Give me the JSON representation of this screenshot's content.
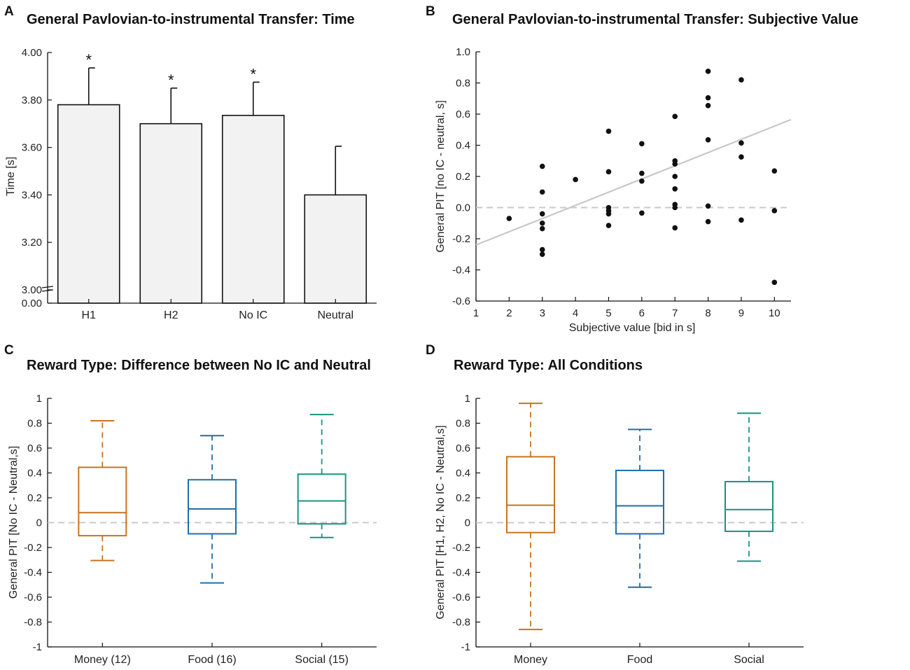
{
  "chart_data": [
    {
      "panel": "A",
      "type": "bar",
      "title": "General Pavlovian-to-instrumental Transfer: Time",
      "ylabel": "Time [s]",
      "xlabel": "",
      "ylim": [
        3.0,
        4.0
      ],
      "axis_break_label": "0.00",
      "yticks": [
        "3.00",
        "3.20",
        "3.40",
        "3.60",
        "3.80",
        "4.00"
      ],
      "categories": [
        "H1",
        "H2",
        "No IC",
        "Neutral"
      ],
      "values": [
        3.78,
        3.7,
        3.735,
        3.4
      ],
      "errors": [
        0.155,
        0.15,
        0.14,
        0.205
      ],
      "significance": [
        "*",
        "*",
        "*",
        ""
      ],
      "bar_color": "#f2f2f2"
    },
    {
      "panel": "B",
      "type": "scatter",
      "title": "General Pavlovian-to-instrumental Transfer:  Subjective Value",
      "xlabel": "Subjective value [bid in s]",
      "ylabel": "General PIT [no IC - neutral, s]",
      "xlim": [
        1,
        10.5
      ],
      "ylim": [
        -0.6,
        1.0
      ],
      "xticks": [
        "1",
        "2",
        "3",
        "4",
        "5",
        "6",
        "7",
        "8",
        "9",
        "10"
      ],
      "yticks": [
        "-0.6",
        "-0.4",
        "-0.2",
        "0.0",
        "0.2",
        "0.4",
        "0.6",
        "0.8",
        "1.0"
      ],
      "points": [
        [
          2,
          -0.07
        ],
        [
          3,
          0.265
        ],
        [
          3,
          0.1
        ],
        [
          3,
          -0.04
        ],
        [
          3,
          -0.1
        ],
        [
          3,
          -0.135
        ],
        [
          3,
          -0.27
        ],
        [
          3,
          -0.3
        ],
        [
          4,
          0.18
        ],
        [
          5,
          0.49
        ],
        [
          5,
          0.23
        ],
        [
          5,
          0.0
        ],
        [
          5,
          -0.02
        ],
        [
          5,
          -0.04
        ],
        [
          5,
          -0.115
        ],
        [
          6,
          0.41
        ],
        [
          6,
          0.22
        ],
        [
          6,
          0.17
        ],
        [
          6,
          -0.035
        ],
        [
          7,
          0.585
        ],
        [
          7,
          0.3
        ],
        [
          7,
          0.28
        ],
        [
          7,
          0.2
        ],
        [
          7,
          0.12
        ],
        [
          7,
          0.02
        ],
        [
          7,
          0.0
        ],
        [
          7,
          -0.13
        ],
        [
          8,
          0.875
        ],
        [
          8,
          0.705
        ],
        [
          8,
          0.655
        ],
        [
          8,
          0.435
        ],
        [
          8,
          0.01
        ],
        [
          8,
          -0.09
        ],
        [
          9,
          0.82
        ],
        [
          9,
          0.415
        ],
        [
          9,
          0.325
        ],
        [
          9,
          -0.08
        ],
        [
          10,
          0.235
        ],
        [
          10,
          -0.02
        ],
        [
          10,
          -0.48
        ]
      ],
      "fit_line": {
        "x": [
          1,
          10.5
        ],
        "y": [
          -0.24,
          0.565
        ],
        "color": "#c8c8c8"
      },
      "reference_line": {
        "y": 0.0,
        "style": "dashed",
        "color": "#c8c8c8"
      }
    },
    {
      "panel": "C",
      "type": "box",
      "title": "Reward Type: Difference between No IC and Neutral",
      "ylabel": "General PIT [No IC - Neutral,s]",
      "ylim": [
        -1,
        1
      ],
      "yticks": [
        "-1",
        "-0.8",
        "-0.6",
        "-0.4",
        "-0.2",
        "0",
        "0.2",
        "0.4",
        "0.6",
        "0.8",
        "1"
      ],
      "categories": [
        "Money (12)",
        "Food (16)",
        "Social (15)"
      ],
      "boxes": [
        {
          "whisker_low": -0.305,
          "q1": -0.105,
          "median": 0.08,
          "q3": 0.445,
          "whisker_high": 0.82,
          "color": "#c8731f"
        },
        {
          "whisker_low": -0.485,
          "q1": -0.09,
          "median": 0.11,
          "q3": 0.345,
          "whisker_high": 0.7,
          "color": "#1f6fa8"
        },
        {
          "whisker_low": -0.12,
          "q1": -0.01,
          "median": 0.175,
          "q3": 0.39,
          "whisker_high": 0.87,
          "color": "#17957f"
        }
      ],
      "reference_line": {
        "y": 0,
        "style": "dashed",
        "color": "#c8c8c8"
      }
    },
    {
      "panel": "D",
      "type": "box",
      "title": "Reward Type: All Conditions",
      "ylabel": "General PIT [H1, H2, No IC - Neutral,s]",
      "ylim": [
        -1,
        1
      ],
      "yticks": [
        "-1",
        "-0.8",
        "-0.6",
        "-0.4",
        "-0.2",
        "0",
        "0.2",
        "0.4",
        "0.6",
        "0.8",
        "1"
      ],
      "categories": [
        "Money",
        "Food",
        "Social"
      ],
      "boxes": [
        {
          "whisker_low": -0.86,
          "q1": -0.08,
          "median": 0.14,
          "q3": 0.53,
          "whisker_high": 0.96,
          "color": "#c8731f"
        },
        {
          "whisker_low": -0.52,
          "q1": -0.09,
          "median": 0.135,
          "q3": 0.42,
          "whisker_high": 0.75,
          "color": "#1f6fa8"
        },
        {
          "whisker_low": -0.31,
          "q1": -0.07,
          "median": 0.105,
          "q3": 0.33,
          "whisker_high": 0.88,
          "color": "#17957f"
        }
      ],
      "reference_line": {
        "y": 0,
        "style": "dashed",
        "color": "#c8c8c8"
      }
    }
  ]
}
